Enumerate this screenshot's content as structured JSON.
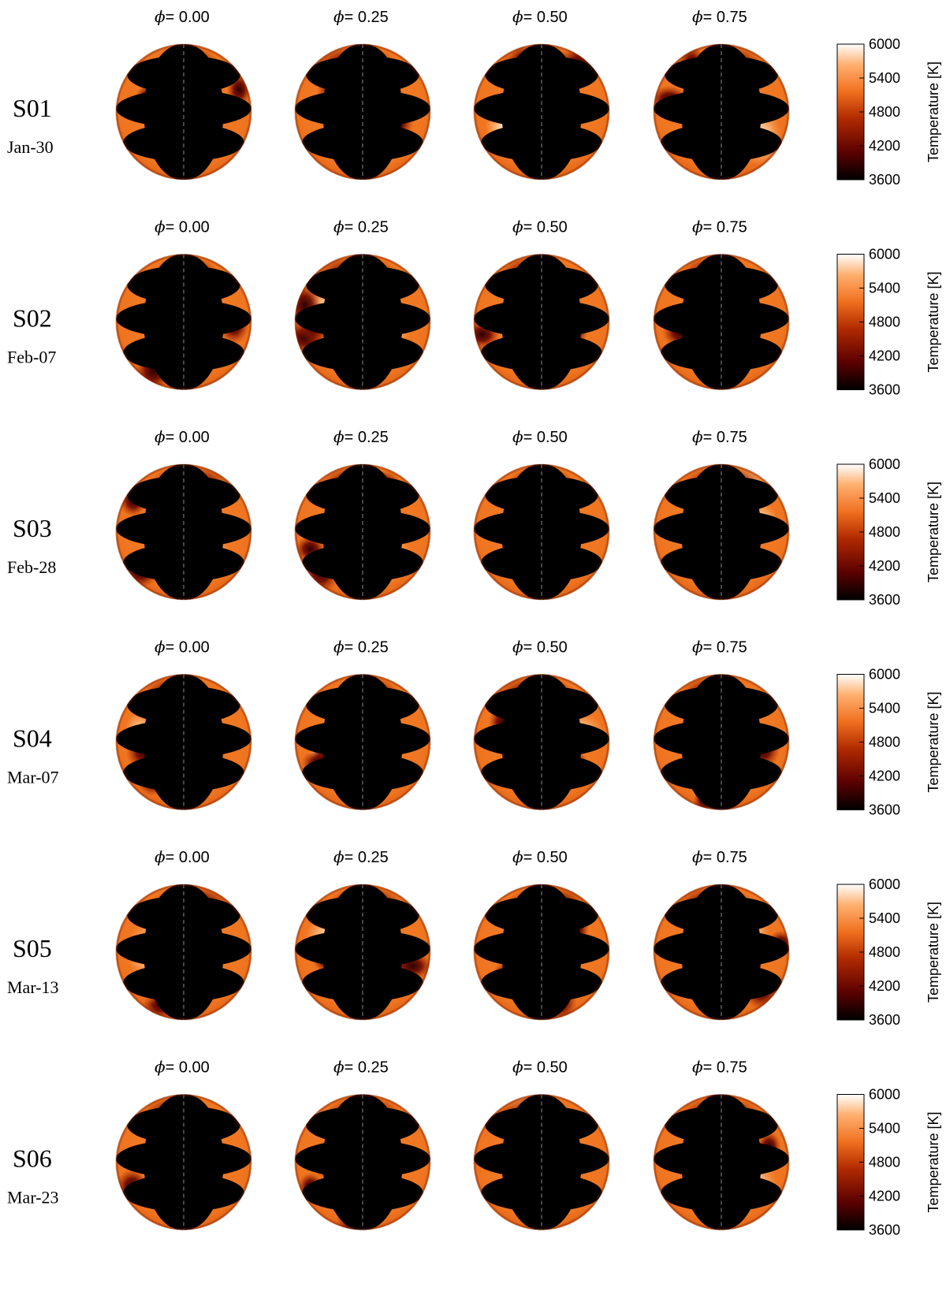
{
  "phase_symbol": "ϕ",
  "phases": [
    "= 0.00",
    "= 0.25",
    "= 0.50",
    "= 0.75"
  ],
  "colorbar": {
    "title": "Temperature [K]",
    "ticks": [
      "6000",
      "5400",
      "4800",
      "4200",
      "3600"
    ],
    "range": [
      3600,
      6000
    ],
    "colors": [
      "#000000",
      "#5a0000",
      "#b02a00",
      "#f07020",
      "#ffb070",
      "#ffffff"
    ]
  },
  "maps": [
    {
      "name": "S01",
      "date": "Jan-30"
    },
    {
      "name": "S02",
      "date": "Feb-07"
    },
    {
      "name": "S03",
      "date": "Feb-28"
    },
    {
      "name": "S04",
      "date": "Mar-07"
    },
    {
      "name": "S05",
      "date": "Mar-13"
    },
    {
      "name": "S06",
      "date": "Mar-23"
    }
  ]
}
